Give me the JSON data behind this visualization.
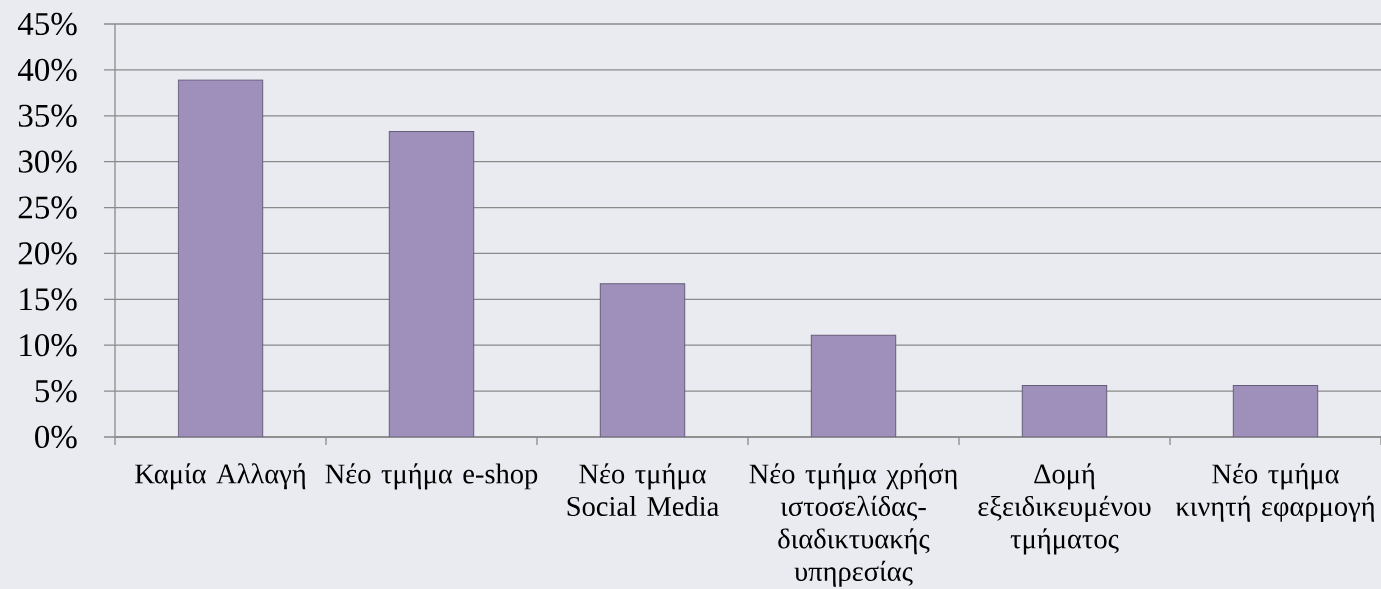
{
  "chart_data": {
    "type": "bar",
    "categories": [
      "Καμία Αλλαγή",
      "Νέο τμήμα e-shop",
      "Νέο τμήμα Social Media",
      "Νέο τμήμα χρήση ιστοσελίδας-διαδικτυακής υπηρεσίας",
      "Δομή εξειδικευμένου τμήματος",
      "Νέο τμήμα κινητή εφαρμογή"
    ],
    "values": [
      38.9,
      33.3,
      16.7,
      11.1,
      5.6,
      5.6
    ],
    "color": "#9e8fbb",
    "ylim": [
      0,
      45
    ],
    "yticks": [
      {
        "value": 0,
        "label": "0%"
      },
      {
        "value": 5,
        "label": "5%"
      },
      {
        "value": 10,
        "label": "10%"
      },
      {
        "value": 15,
        "label": "15%"
      },
      {
        "value": 20,
        "label": "20%"
      },
      {
        "value": 25,
        "label": "25%"
      },
      {
        "value": 30,
        "label": "30%"
      },
      {
        "value": 35,
        "label": "35%"
      },
      {
        "value": 40,
        "label": "40%"
      },
      {
        "value": 45,
        "label": "45%"
      }
    ],
    "grid": "y"
  }
}
